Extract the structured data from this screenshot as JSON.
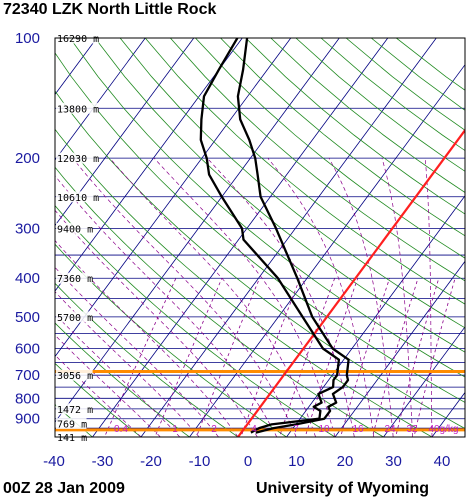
{
  "header": {
    "title": "72340 LZK North Little Rock"
  },
  "footer": {
    "left": "00Z 28 Jan 2009",
    "right": "University of Wyoming"
  },
  "colors": {
    "isobar": "#000080",
    "isotherm": "#000080",
    "dry_adiabat": "#228b22",
    "moist_adiabat": "#8b008b",
    "mixing_ratio": "#8b008b",
    "temperature": "#000000",
    "dewpoint": "#000000",
    "freezing_line": "#ff2020",
    "highlight": "#ff8c00"
  },
  "chart_data": {
    "type": "line",
    "title": "72340 LZK North Little Rock",
    "pressure_ticks": [
      100,
      200,
      300,
      400,
      500,
      600,
      700,
      800,
      900
    ],
    "temperature_ticks": [
      -40,
      -30,
      -20,
      -10,
      0,
      10,
      20,
      30,
      40
    ],
    "height_labels": [
      {
        "p": 100,
        "label": "16290 m"
      },
      {
        "p": 150,
        "label": "13800 m"
      },
      {
        "p": 200,
        "label": "12030 m"
      },
      {
        "p": 250,
        "label": "10610 m"
      },
      {
        "p": 300,
        "label": "9400 m"
      },
      {
        "p": 400,
        "label": "7360 m"
      },
      {
        "p": 500,
        "label": "5700 m"
      },
      {
        "p": 700,
        "label": "3056 m"
      },
      {
        "p": 850,
        "label": "1472 m"
      },
      {
        "p": 925,
        "label": "769 m"
      },
      {
        "p": 1000,
        "label": "141 m"
      }
    ],
    "mixing_ratio_labels": [
      "0.4",
      "1",
      "2",
      "4",
      "7",
      "10",
      "16",
      "24",
      "32",
      "40",
      "g/kg"
    ],
    "highlighted_levels_hPa": [
      685,
      960
    ],
    "temperature": [
      {
        "p": 975,
        "t": 3
      },
      {
        "p": 950,
        "t": 6
      },
      {
        "p": 930,
        "t": 10
      },
      {
        "p": 900,
        "t": 15
      },
      {
        "p": 860,
        "t": 15
      },
      {
        "p": 840,
        "t": 14
      },
      {
        "p": 820,
        "t": 15
      },
      {
        "p": 780,
        "t": 13
      },
      {
        "p": 750,
        "t": 14
      },
      {
        "p": 720,
        "t": 14
      },
      {
        "p": 700,
        "t": 13
      },
      {
        "p": 640,
        "t": 11
      },
      {
        "p": 600,
        "t": 6
      },
      {
        "p": 500,
        "t": -3
      },
      {
        "p": 400,
        "t": -12
      },
      {
        "p": 300,
        "t": -24
      },
      {
        "p": 250,
        "t": -32
      },
      {
        "p": 220,
        "t": -36
      },
      {
        "p": 200,
        "t": -39
      },
      {
        "p": 180,
        "t": -43
      },
      {
        "p": 160,
        "t": -48
      },
      {
        "p": 140,
        "t": -52
      },
      {
        "p": 120,
        "t": -55
      },
      {
        "p": 100,
        "t": -59
      }
    ],
    "dewpoint": [
      {
        "p": 975,
        "t": 2
      },
      {
        "p": 950,
        "t": 3
      },
      {
        "p": 930,
        "t": 5
      },
      {
        "p": 900,
        "t": 14
      },
      {
        "p": 860,
        "t": 13
      },
      {
        "p": 840,
        "t": 11
      },
      {
        "p": 820,
        "t": 12
      },
      {
        "p": 780,
        "t": 10
      },
      {
        "p": 750,
        "t": 12
      },
      {
        "p": 720,
        "t": 11
      },
      {
        "p": 700,
        "t": 11
      },
      {
        "p": 640,
        "t": 9
      },
      {
        "p": 600,
        "t": 4
      },
      {
        "p": 500,
        "t": -5
      },
      {
        "p": 400,
        "t": -16
      },
      {
        "p": 320,
        "t": -29
      },
      {
        "p": 300,
        "t": -31
      },
      {
        "p": 250,
        "t": -40
      },
      {
        "p": 220,
        "t": -46
      },
      {
        "p": 200,
        "t": -49
      },
      {
        "p": 180,
        "t": -53
      },
      {
        "p": 160,
        "t": -56
      },
      {
        "p": 140,
        "t": -59
      },
      {
        "p": 120,
        "t": -60
      },
      {
        "p": 100,
        "t": -61
      }
    ]
  }
}
